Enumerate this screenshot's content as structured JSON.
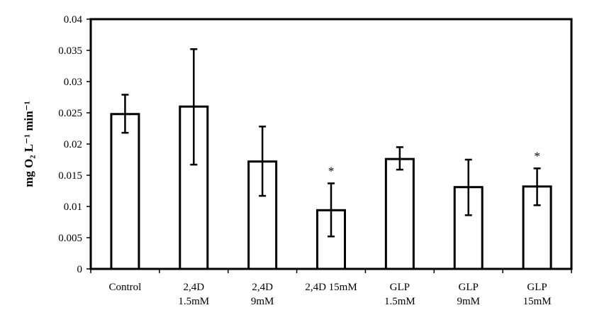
{
  "chart_data": {
    "type": "bar",
    "title": "",
    "xlabel": "",
    "ylabel": "mg O₂ L⁻¹ min⁻¹",
    "ylim": [
      0,
      0.04
    ],
    "y_ticks": [
      "0",
      "0.005",
      "0.01",
      "0.015",
      "0.02",
      "0.025",
      "0.03",
      "0.035",
      "0.04"
    ],
    "y_tick_values": [
      0,
      0.005,
      0.01,
      0.015,
      0.02,
      0.025,
      0.03,
      0.035,
      0.04
    ],
    "categories": [
      [
        "Control"
      ],
      [
        "2,4D",
        "1.5mM"
      ],
      [
        "2,4D",
        "9mM"
      ],
      [
        "2,4D 15mM"
      ],
      [
        "GLP",
        "1.5mM"
      ],
      [
        "GLP",
        "9mM"
      ],
      [
        "GLP",
        "15mM"
      ]
    ],
    "values": [
      0.0248,
      0.026,
      0.0172,
      0.0094,
      0.0176,
      0.0131,
      0.0132
    ],
    "error_low": [
      0.0218,
      0.0167,
      0.0117,
      0.0052,
      0.0159,
      0.0086,
      0.0102
    ],
    "error_high": [
      0.0279,
      0.0352,
      0.0228,
      0.0137,
      0.0195,
      0.0175,
      0.0161
    ],
    "significance": [
      "",
      "",
      "",
      "*",
      "",
      "",
      "*"
    ],
    "grid": false,
    "bar_fill": "#ffffff",
    "bar_stroke": "#000000"
  }
}
